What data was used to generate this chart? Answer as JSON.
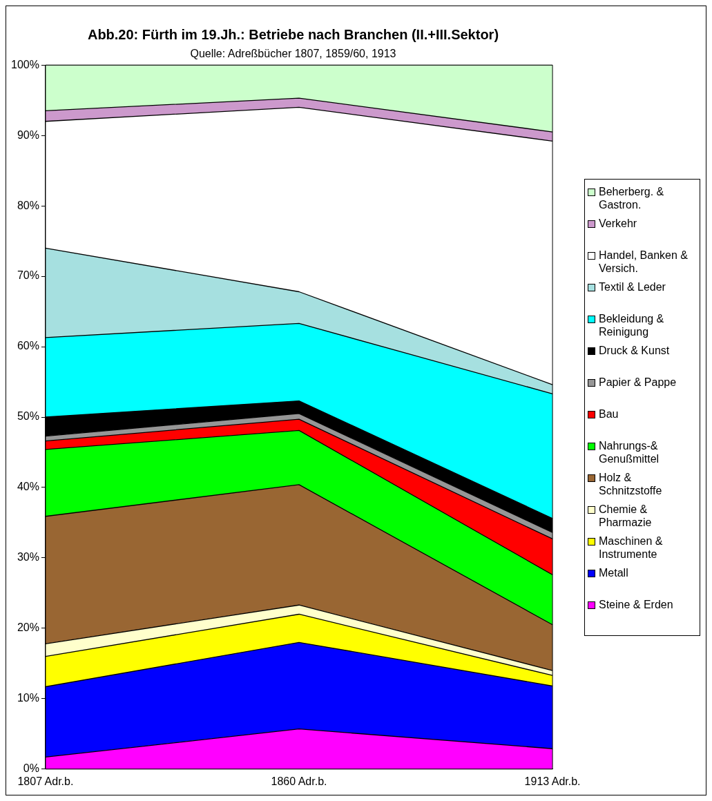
{
  "chart_data": {
    "type": "area",
    "title": "Abb.20: Fürth im 19.Jh.: Betriebe nach Branchen (II.+III.Sektor)",
    "subtitle": "Quelle: Adreßbücher 1807, 1859/60, 1913",
    "categories": [
      "1807 Adr.b.",
      "1860 Adr.b.",
      "1913 Adr.b."
    ],
    "stacked": true,
    "ylim": [
      0,
      100
    ],
    "yticks": [
      {
        "value": 0,
        "label": "0%"
      },
      {
        "value": 10,
        "label": "10%"
      },
      {
        "value": 20,
        "label": "20%"
      },
      {
        "value": 30,
        "label": "30%"
      },
      {
        "value": 40,
        "label": "40%"
      },
      {
        "value": 50,
        "label": "50%"
      },
      {
        "value": 60,
        "label": "60%"
      },
      {
        "value": 70,
        "label": "70%"
      },
      {
        "value": 80,
        "label": "80%"
      },
      {
        "value": 90,
        "label": "90%"
      },
      {
        "value": 100,
        "label": "100%"
      }
    ],
    "grid": false,
    "legend": "right",
    "series": [
      {
        "name": "Steine & Erden",
        "color": "#ff00ff",
        "values": [
          1.7,
          5.7,
          2.9
        ]
      },
      {
        "name": "Metall",
        "color": "#0000ff",
        "values": [
          10.0,
          12.3,
          8.9
        ]
      },
      {
        "name": "Maschinen & Instrumente",
        "color": "#ffff00",
        "values": [
          4.3,
          4.0,
          1.5
        ]
      },
      {
        "name": "Chemie & Pharmazie",
        "color": "#ffffcc",
        "values": [
          1.8,
          1.3,
          0.7
        ]
      },
      {
        "name": "Holz & Schnitzstoffe",
        "color": "#996633",
        "values": [
          18.1,
          17.1,
          6.5
        ]
      },
      {
        "name": "Nahrungs-& Genußmittel",
        "color": "#00ff00",
        "values": [
          9.5,
          7.7,
          7.1
        ]
      },
      {
        "name": "Bau",
        "color": "#ff0000",
        "values": [
          1.2,
          1.6,
          5.1
        ]
      },
      {
        "name": "Papier & Pappe",
        "color": "#969696",
        "values": [
          0.7,
          0.8,
          0.9
        ]
      },
      {
        "name": "Druck & Kunst",
        "color": "#000000",
        "values": [
          2.7,
          1.8,
          2.0
        ]
      },
      {
        "name": "Bekleidung & Reinigung",
        "color": "#00ffff",
        "values": [
          11.3,
          11.0,
          17.7
        ]
      },
      {
        "name": "Textil & Leder",
        "color": "#a6e0e0",
        "values": [
          12.7,
          4.5,
          1.3
        ]
      },
      {
        "name": "Handel, Banken & Versich.",
        "color": "#ffffff",
        "values": [
          18.0,
          26.2,
          34.6
        ]
      },
      {
        "name": "Verkehr",
        "color": "#cc99cc",
        "values": [
          1.5,
          1.3,
          1.3
        ]
      },
      {
        "name": "Beherberg. & Gastron.",
        "color": "#ccffcc",
        "values": [
          6.5,
          4.7,
          9.5
        ]
      }
    ]
  }
}
